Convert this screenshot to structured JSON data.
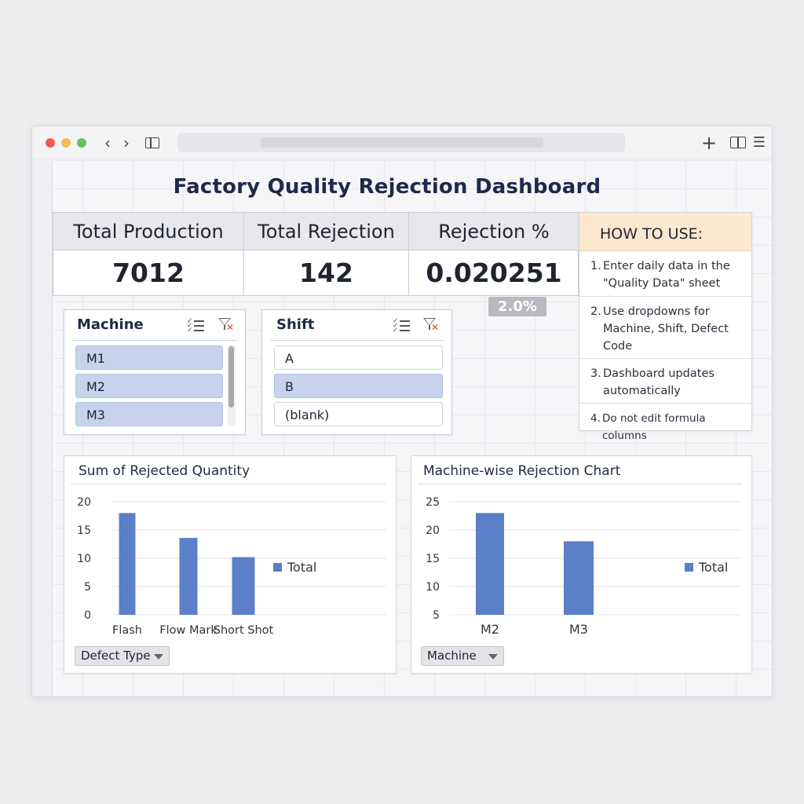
{
  "browser": {
    "back_icon": "chevron-left-icon",
    "forward_icon": "chevron-right-icon",
    "new_tab_icon": "plus-icon",
    "menu_icon": "hamburger-icon"
  },
  "dashboard": {
    "title": "Factory Quality Rejection Dashboard",
    "kpis": [
      {
        "header": "Total Production",
        "value": "7012"
      },
      {
        "header": "Total Rejection",
        "value": "142"
      },
      {
        "header": "Rejection %",
        "value": "0.020251"
      }
    ],
    "rejection_pct_badge": "2.0%"
  },
  "how_to_use": {
    "title": "HOW TO USE:",
    "steps": [
      {
        "num": "1.",
        "text": "Enter daily data in the \"Quality Data\" sheet"
      },
      {
        "num": "2.",
        "text": "Use dropdowns for Machine, Shift, Defect Code"
      },
      {
        "num": "3.",
        "text": "Dashboard updates automatically"
      },
      {
        "num": "4.",
        "text": "Do not edit formula columns"
      }
    ]
  },
  "slicers": {
    "machine": {
      "title": "Machine",
      "items": [
        "M1",
        "M2",
        "M3"
      ],
      "selected": [
        true,
        true,
        true
      ]
    },
    "shift": {
      "title": "Shift",
      "items": [
        "A",
        "B",
        "(blank)"
      ],
      "selected": [
        false,
        true,
        false
      ]
    }
  },
  "colors": {
    "bar": "#5b7fc8",
    "selected_item": "#c7d3ec",
    "howto_header": "#fbe8cf"
  },
  "chart_data": [
    {
      "type": "bar",
      "title": "Sum of Rejected Quantity",
      "categories": [
        "Flash",
        "Flow Mark",
        "Short Shot"
      ],
      "series": [
        {
          "name": "Total",
          "values": [
            18,
            13.6,
            10.2
          ]
        }
      ],
      "yticks": [
        "0",
        "5",
        "10",
        "15",
        "20"
      ],
      "ylim": [
        0,
        20
      ],
      "legend": "right",
      "field_button": "Defect Type"
    },
    {
      "type": "bar",
      "title": "Machine-wise Rejection Chart",
      "categories": [
        "M2",
        "M3"
      ],
      "series": [
        {
          "name": "Total",
          "values": [
            23,
            18
          ]
        }
      ],
      "yticks": [
        "5",
        "10",
        "15",
        "20",
        "25"
      ],
      "ylim": [
        5,
        25
      ],
      "legend": "right",
      "field_button": "Machine"
    }
  ]
}
